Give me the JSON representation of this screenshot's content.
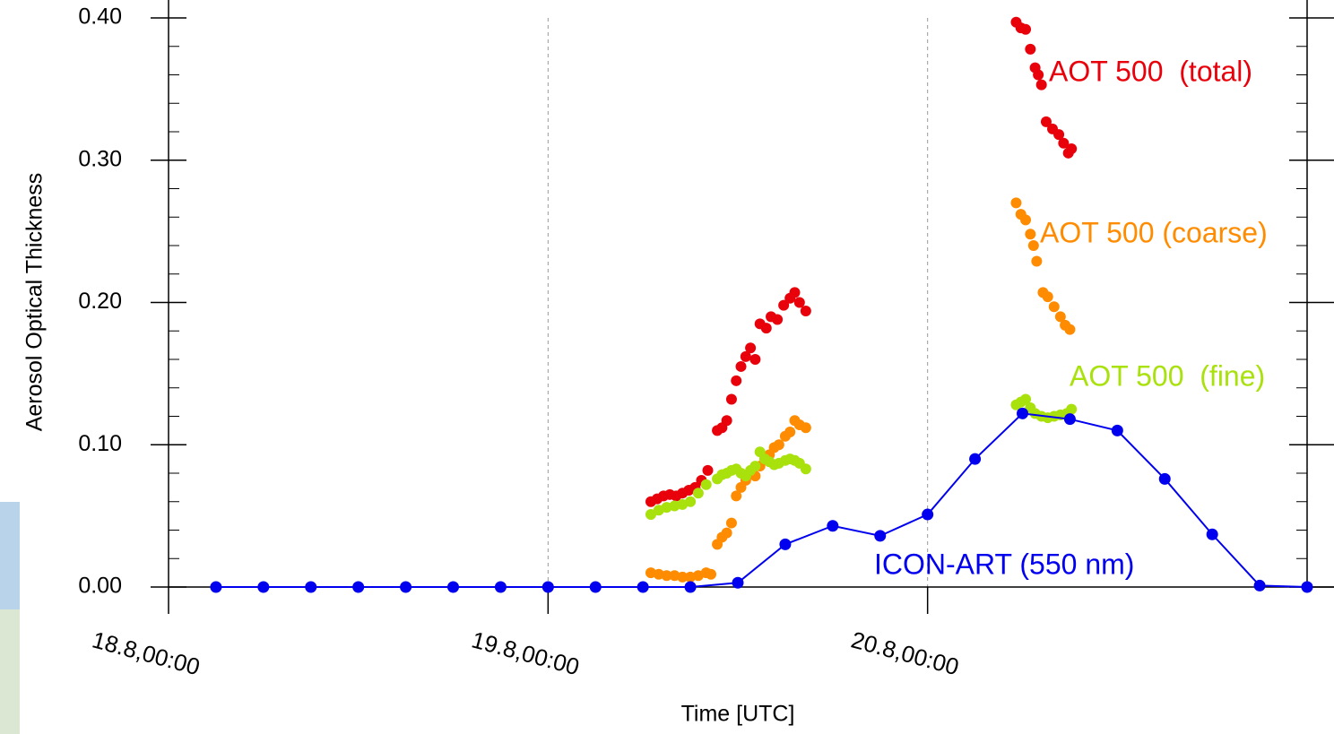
{
  "chart_data": {
    "type": "scatter-line",
    "x_label": "Time [UTC]",
    "y_label": "Aerosol Optical Thickness",
    "xlim": [
      0,
      72
    ],
    "ylim": [
      0,
      0.4
    ],
    "xticks": [
      {
        "value": 0,
        "label": "18.8,00:00"
      },
      {
        "value": 24,
        "label": "19.8,00:00"
      },
      {
        "value": 48,
        "label": "20.8,00:00"
      }
    ],
    "yticks": [
      {
        "value": 0,
        "label": "0.00"
      },
      {
        "value": 0.1,
        "label": "0.10"
      },
      {
        "value": 0.2,
        "label": "0.20"
      },
      {
        "value": 0.3,
        "label": "0.30"
      },
      {
        "value": 0.4,
        "label": "0.40"
      }
    ],
    "yminorticks": [
      0.02,
      0.04,
      0.06,
      0.08,
      0.12,
      0.14,
      0.16,
      0.18,
      0.22,
      0.24,
      0.26,
      0.28,
      0.32,
      0.34,
      0.36,
      0.38
    ],
    "xgrid": true,
    "series": [
      {
        "name": "AOT 500  (total)",
        "color": "#e8000b",
        "line": false,
        "x": [
          30.5,
          30.9,
          31.3,
          31.7,
          32.1,
          32.5,
          32.9,
          33.3,
          33.7,
          34.1,
          34.7,
          35.0,
          35.3,
          35.6,
          35.9,
          36.2,
          36.5,
          36.8,
          37.1,
          37.4,
          37.8,
          38.1,
          38.5,
          38.9,
          39.3,
          39.6,
          39.9,
          40.3,
          53.6,
          53.9,
          54.2,
          54.5,
          54.8,
          55.0,
          55.2,
          55.5,
          55.9,
          56.3,
          56.6,
          56.9,
          57.1
        ],
        "values": [
          0.06,
          0.062,
          0.064,
          0.065,
          0.064,
          0.066,
          0.068,
          0.07,
          0.075,
          0.082,
          0.11,
          0.112,
          0.117,
          0.132,
          0.145,
          0.155,
          0.162,
          0.168,
          0.16,
          0.185,
          0.182,
          0.19,
          0.188,
          0.198,
          0.203,
          0.207,
          0.2,
          0.194,
          0.397,
          0.393,
          0.392,
          0.378,
          0.365,
          0.36,
          0.353,
          0.327,
          0.322,
          0.318,
          0.312,
          0.305,
          0.308
        ]
      },
      {
        "name": "AOT 500 (coarse)",
        "color": "#ff8c00",
        "line": false,
        "x": [
          30.5,
          31.0,
          31.5,
          32.0,
          32.5,
          33.0,
          33.5,
          34.0,
          34.3,
          34.7,
          35.0,
          35.3,
          35.6,
          35.9,
          36.2,
          36.5,
          36.8,
          37.1,
          37.4,
          37.7,
          38.0,
          38.3,
          38.6,
          39.0,
          39.3,
          39.6,
          39.9,
          40.3,
          53.6,
          53.9,
          54.2,
          54.5,
          54.7,
          54.9,
          55.3,
          55.6,
          56.0,
          56.4,
          56.7,
          57.0
        ],
        "values": [
          0.01,
          0.009,
          0.008,
          0.008,
          0.007,
          0.007,
          0.008,
          0.01,
          0.009,
          0.03,
          0.035,
          0.038,
          0.045,
          0.064,
          0.07,
          0.075,
          0.08,
          0.078,
          0.085,
          0.09,
          0.093,
          0.098,
          0.1,
          0.106,
          0.109,
          0.117,
          0.114,
          0.112,
          0.27,
          0.262,
          0.258,
          0.248,
          0.24,
          0.229,
          0.207,
          0.204,
          0.197,
          0.19,
          0.184,
          0.181
        ]
      },
      {
        "name": "AOT 500  (fine)",
        "color": "#a8e10c",
        "line": false,
        "x": [
          30.5,
          31.0,
          31.5,
          32.0,
          32.5,
          33.0,
          33.5,
          34.0,
          34.7,
          35.0,
          35.3,
          35.6,
          35.9,
          36.2,
          36.5,
          36.8,
          37.1,
          37.4,
          37.7,
          38.0,
          38.3,
          38.6,
          39.0,
          39.3,
          39.6,
          39.9,
          40.3,
          53.6,
          53.9,
          54.2,
          54.5,
          54.8,
          55.2,
          55.6,
          56.0,
          56.4,
          56.8,
          57.1
        ],
        "values": [
          0.051,
          0.054,
          0.056,
          0.057,
          0.058,
          0.06,
          0.066,
          0.072,
          0.076,
          0.079,
          0.08,
          0.082,
          0.083,
          0.08,
          0.078,
          0.082,
          0.085,
          0.095,
          0.09,
          0.088,
          0.086,
          0.087,
          0.089,
          0.09,
          0.089,
          0.087,
          0.083,
          0.128,
          0.13,
          0.132,
          0.126,
          0.122,
          0.12,
          0.119,
          0.12,
          0.121,
          0.122,
          0.125
        ]
      },
      {
        "name": "ICON-ART (550 nm)",
        "color": "#0000ee",
        "line": true,
        "x": [
          3,
          6,
          9,
          12,
          15,
          18,
          21,
          24,
          27,
          30,
          33,
          36,
          39,
          42,
          45,
          48,
          51,
          54,
          57,
          60,
          63,
          66,
          69,
          72
        ],
        "values": [
          0,
          0,
          0,
          0,
          0,
          0,
          0,
          0,
          0,
          0,
          0,
          0.003,
          0.03,
          0.043,
          0.036,
          0.051,
          0.09,
          0.122,
          0.118,
          0.11,
          0.076,
          0.037,
          0.001,
          0
        ]
      }
    ]
  }
}
